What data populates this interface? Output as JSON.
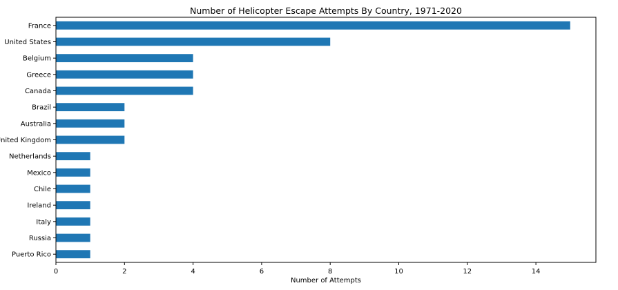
{
  "chart_data": {
    "type": "bar",
    "orientation": "horizontal",
    "title": "Number of Helicopter Escape Attempts By Country, 1971-2020",
    "xlabel": "Number of Attempts",
    "ylabel": "",
    "categories": [
      "France",
      "United States",
      "Belgium",
      "Greece",
      "Canada",
      "Brazil",
      "Australia",
      "United Kingdom",
      "Netherlands",
      "Mexico",
      "Chile",
      "Ireland",
      "Italy",
      "Russia",
      "Puerto Rico"
    ],
    "values": [
      15,
      8,
      4,
      4,
      4,
      2,
      2,
      2,
      1,
      1,
      1,
      1,
      1,
      1,
      1
    ],
    "xlim": [
      0,
      15.75
    ],
    "xticks": [
      "0",
      "2",
      "4",
      "6",
      "8",
      "10",
      "12",
      "14"
    ],
    "grid": false,
    "legend": "none",
    "bar_color": "#1f77b4"
  }
}
